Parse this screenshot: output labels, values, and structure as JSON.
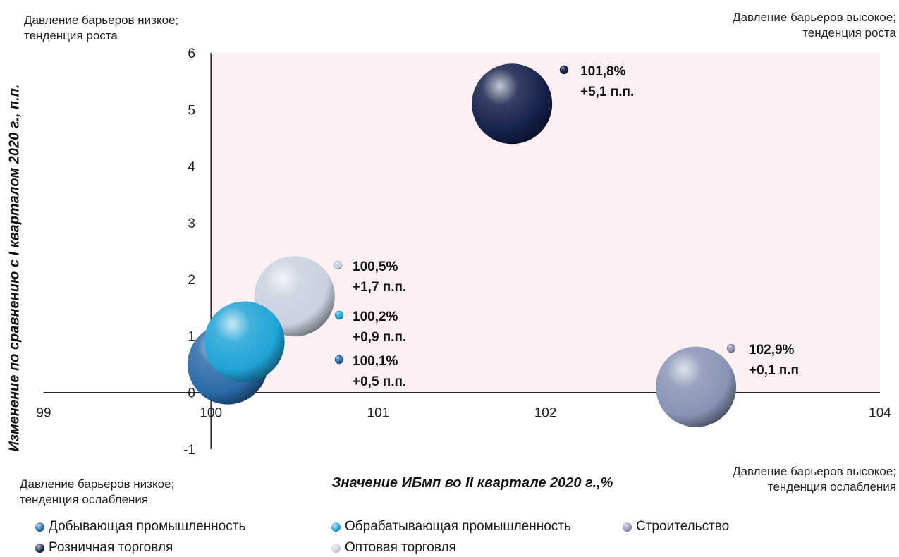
{
  "corner_labels": {
    "top_left": [
      "Давление барьеров низкое;",
      "тенденция роста"
    ],
    "top_right": [
      "Давление барьеров высокое;",
      "тенденция роста"
    ],
    "bottom_left": [
      "Давление барьеров низкое;",
      "тенденция ослабления"
    ],
    "bottom_right": [
      "Давление барьеров высокое;",
      "тенденция ослабления"
    ]
  },
  "chart_data": {
    "type": "scatter",
    "variant": "bubble",
    "xlabel": "Значение ИБмп во II квартале 2020 г.,%",
    "ylabel": "Изменение по сравнению с I кварталом 2020 г., п.п.",
    "xlim": [
      99,
      104
    ],
    "ylim": [
      -1,
      6
    ],
    "x_ticks": [
      "99",
      "100",
      "101",
      "102",
      "103",
      "104"
    ],
    "y_ticks": [
      "-1",
      "0",
      "1",
      "2",
      "3",
      "4",
      "5",
      "6"
    ],
    "grid": false,
    "highlight_region": {
      "x": [
        100,
        104
      ],
      "y": [
        0,
        6
      ],
      "color": "#fdf0f2"
    },
    "legend_position": "bottom",
    "series": [
      {
        "name": "Добывающая промышленность",
        "x": 100.1,
        "y": 0.5,
        "color": "#2a6aa8",
        "label_lines": [
          "100,1%",
          "+0,5 п.п."
        ]
      },
      {
        "name": "Обрабатывающая промышленность",
        "x": 100.2,
        "y": 0.9,
        "color": "#1fa3d6",
        "label_lines": [
          "100,2%",
          "+0,9 п.п."
        ]
      },
      {
        "name": "Строительство",
        "x": 102.9,
        "y": 0.1,
        "color": "#8893b5",
        "label_lines": [
          "102,9%",
          "+0,1 п.п"
        ]
      },
      {
        "name": "Розничная торговля",
        "x": 101.8,
        "y": 5.1,
        "color": "#13204a",
        "label_lines": [
          "101,8%",
          "+5,1 п.п."
        ]
      },
      {
        "name": "Оптовая торговля",
        "x": 100.5,
        "y": 1.7,
        "color": "#c9d1df",
        "label_lines": [
          "100,5%",
          "+1,7 п.п."
        ]
      }
    ]
  }
}
